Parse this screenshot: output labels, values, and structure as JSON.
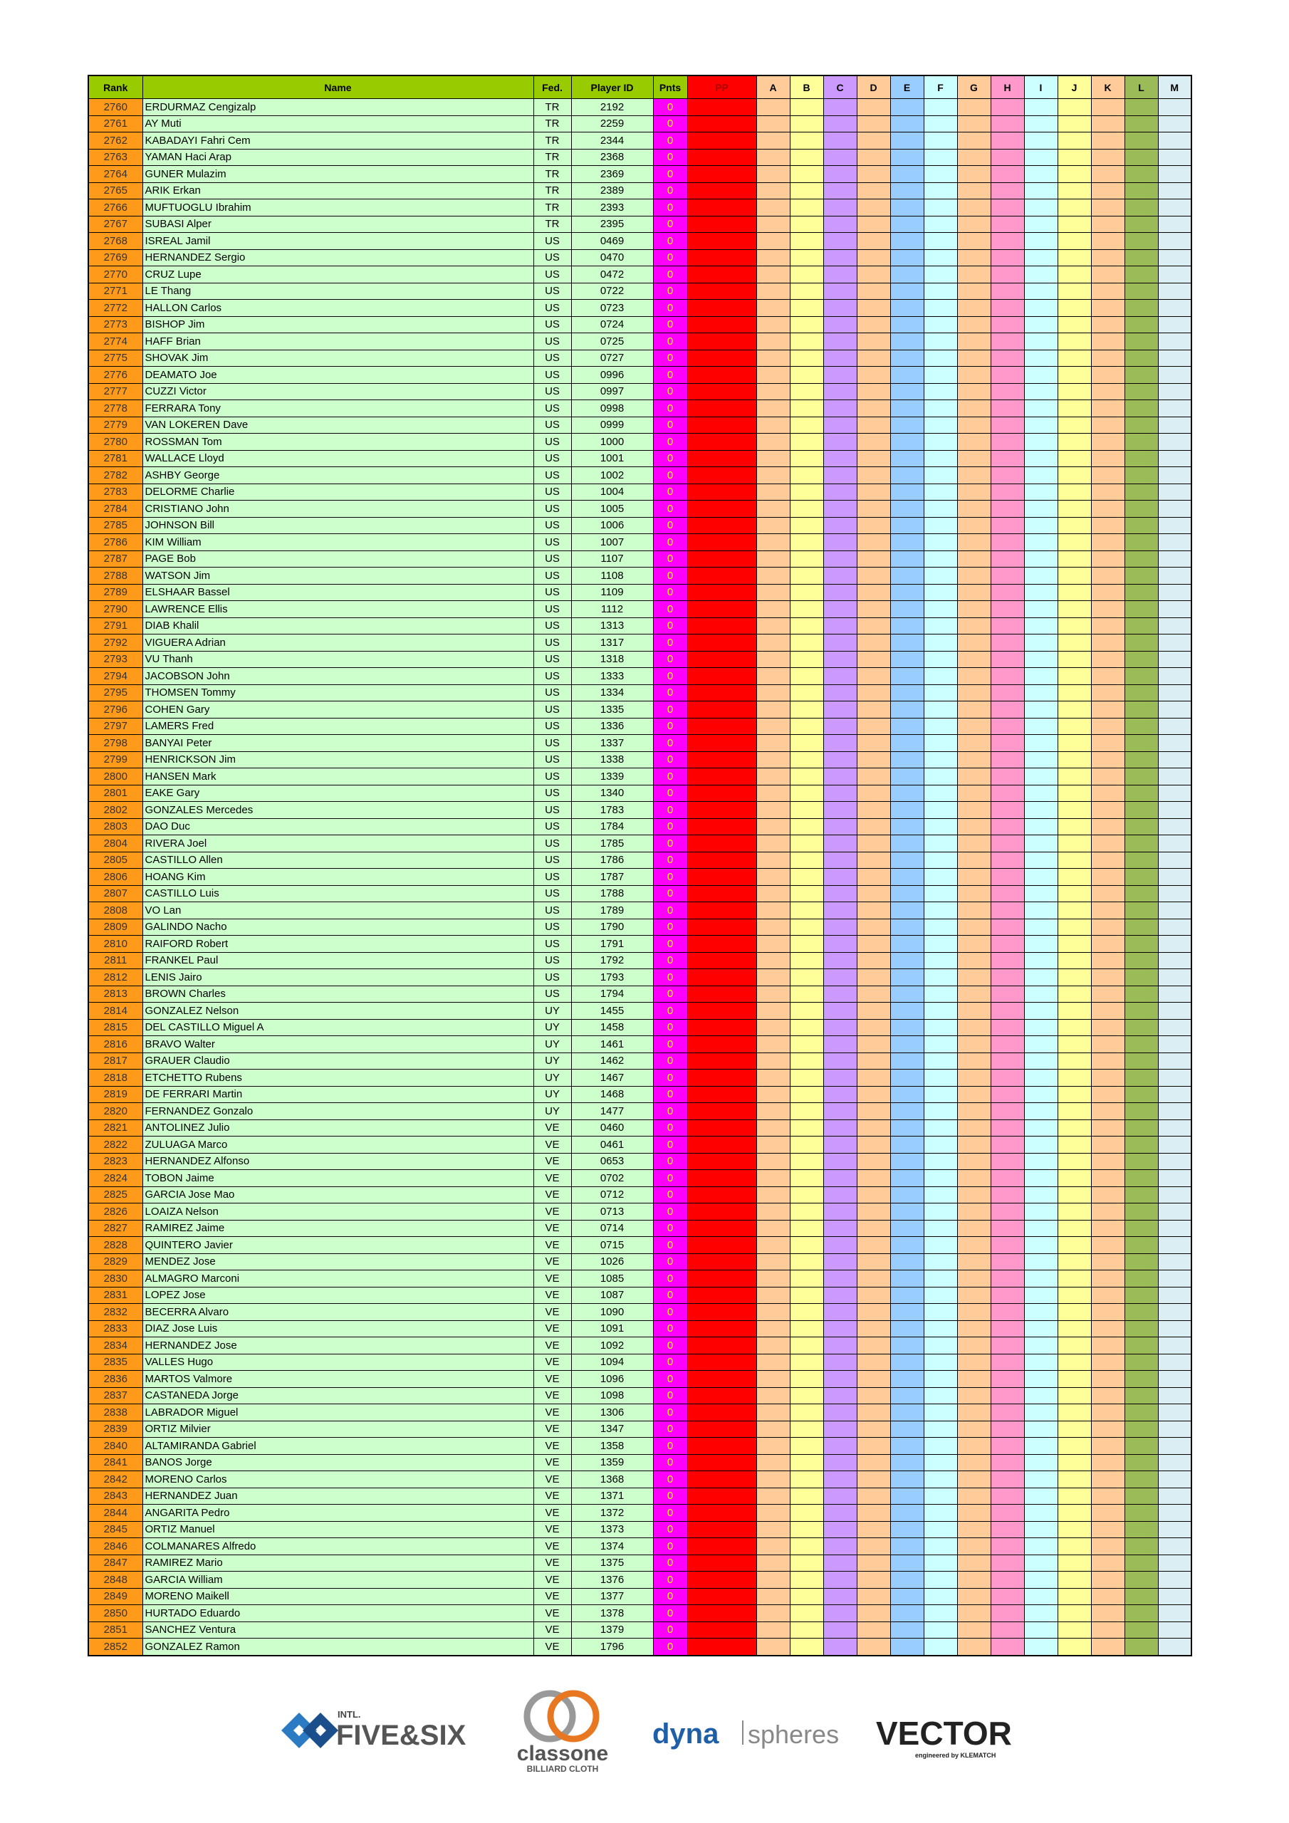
{
  "table": {
    "columns": [
      "Rank",
      "Name",
      "Fed.",
      "Player ID",
      "Pnts",
      "PP",
      "A",
      "B",
      "C",
      "D",
      "E",
      "F",
      "G",
      "H",
      "I",
      "J",
      "K",
      "L",
      "M"
    ],
    "rows": [
      [
        2760,
        "ERDURMAZ Cengizalp",
        "TR",
        "2192",
        0
      ],
      [
        2761,
        "AY Muti",
        "TR",
        "2259",
        0
      ],
      [
        2762,
        "KABADAYI Fahri Cem",
        "TR",
        "2344",
        0
      ],
      [
        2763,
        "YAMAN Haci Arap",
        "TR",
        "2368",
        0
      ],
      [
        2764,
        "GUNER Mulazim",
        "TR",
        "2369",
        0
      ],
      [
        2765,
        "ARIK Erkan",
        "TR",
        "2389",
        0
      ],
      [
        2766,
        "MUFTUOGLU Ibrahim",
        "TR",
        "2393",
        0
      ],
      [
        2767,
        "SUBASI Alper",
        "TR",
        "2395",
        0
      ],
      [
        2768,
        "ISREAL Jamil",
        "US",
        "0469",
        0
      ],
      [
        2769,
        "HERNANDEZ Sergio",
        "US",
        "0470",
        0
      ],
      [
        2770,
        "CRUZ Lupe",
        "US",
        "0472",
        0
      ],
      [
        2771,
        "LE Thang",
        "US",
        "0722",
        0
      ],
      [
        2772,
        "HALLON Carlos",
        "US",
        "0723",
        0
      ],
      [
        2773,
        "BISHOP Jim",
        "US",
        "0724",
        0
      ],
      [
        2774,
        "HAFF Brian",
        "US",
        "0725",
        0
      ],
      [
        2775,
        "SHOVAK Jim",
        "US",
        "0727",
        0
      ],
      [
        2776,
        "DEAMATO Joe",
        "US",
        "0996",
        0
      ],
      [
        2777,
        "CUZZI Victor",
        "US",
        "0997",
        0
      ],
      [
        2778,
        "FERRARA Tony",
        "US",
        "0998",
        0
      ],
      [
        2779,
        "VAN LOKEREN Dave",
        "US",
        "0999",
        0
      ],
      [
        2780,
        "ROSSMAN Tom",
        "US",
        "1000",
        0
      ],
      [
        2781,
        "WALLACE Lloyd",
        "US",
        "1001",
        0
      ],
      [
        2782,
        "ASHBY George",
        "US",
        "1002",
        0
      ],
      [
        2783,
        "DELORME Charlie",
        "US",
        "1004",
        0
      ],
      [
        2784,
        "CRISTIANO John",
        "US",
        "1005",
        0
      ],
      [
        2785,
        "JOHNSON Bill",
        "US",
        "1006",
        0
      ],
      [
        2786,
        "KIM William",
        "US",
        "1007",
        0
      ],
      [
        2787,
        "PAGE Bob",
        "US",
        "1107",
        0
      ],
      [
        2788,
        "WATSON Jim",
        "US",
        "1108",
        0
      ],
      [
        2789,
        "ELSHAAR Bassel",
        "US",
        "1109",
        0
      ],
      [
        2790,
        "LAWRENCE Ellis",
        "US",
        "1112",
        0
      ],
      [
        2791,
        "DIAB Khalil",
        "US",
        "1313",
        0
      ],
      [
        2792,
        "VIGUERA Adrian",
        "US",
        "1317",
        0
      ],
      [
        2793,
        "VU Thanh",
        "US",
        "1318",
        0
      ],
      [
        2794,
        "JACOBSON John",
        "US",
        "1333",
        0
      ],
      [
        2795,
        "THOMSEN Tommy",
        "US",
        "1334",
        0
      ],
      [
        2796,
        "COHEN Gary",
        "US",
        "1335",
        0
      ],
      [
        2797,
        "LAMERS Fred",
        "US",
        "1336",
        0
      ],
      [
        2798,
        "BANYAI Peter",
        "US",
        "1337",
        0
      ],
      [
        2799,
        "HENRICKSON Jim",
        "US",
        "1338",
        0
      ],
      [
        2800,
        "HANSEN Mark",
        "US",
        "1339",
        0
      ],
      [
        2801,
        "EAKE Gary",
        "US",
        "1340",
        0
      ],
      [
        2802,
        "GONZALES Mercedes",
        "US",
        "1783",
        0
      ],
      [
        2803,
        "DAO Duc",
        "US",
        "1784",
        0
      ],
      [
        2804,
        "RIVERA Joel",
        "US",
        "1785",
        0
      ],
      [
        2805,
        "CASTILLO Allen",
        "US",
        "1786",
        0
      ],
      [
        2806,
        "HOANG Kim",
        "US",
        "1787",
        0
      ],
      [
        2807,
        "CASTILLO Luis",
        "US",
        "1788",
        0
      ],
      [
        2808,
        "VO Lan",
        "US",
        "1789",
        0
      ],
      [
        2809,
        "GALINDO Nacho",
        "US",
        "1790",
        0
      ],
      [
        2810,
        "RAIFORD Robert",
        "US",
        "1791",
        0
      ],
      [
        2811,
        "FRANKEL Paul",
        "US",
        "1792",
        0
      ],
      [
        2812,
        "LENIS Jairo",
        "US",
        "1793",
        0
      ],
      [
        2813,
        "BROWN Charles",
        "US",
        "1794",
        0
      ],
      [
        2814,
        "GONZALEZ Nelson",
        "UY",
        "1455",
        0
      ],
      [
        2815,
        "DEL CASTILLO Miguel A",
        "UY",
        "1458",
        0
      ],
      [
        2816,
        "BRAVO Walter",
        "UY",
        "1461",
        0
      ],
      [
        2817,
        "GRAUER Claudio",
        "UY",
        "1462",
        0
      ],
      [
        2818,
        "ETCHETTO Rubens",
        "UY",
        "1467",
        0
      ],
      [
        2819,
        "DE FERRARI Martin",
        "UY",
        "1468",
        0
      ],
      [
        2820,
        "FERNANDEZ Gonzalo",
        "UY",
        "1477",
        0
      ],
      [
        2821,
        "ANTOLINEZ Julio",
        "VE",
        "0460",
        0
      ],
      [
        2822,
        "ZULUAGA Marco",
        "VE",
        "0461",
        0
      ],
      [
        2823,
        "HERNANDEZ Alfonso",
        "VE",
        "0653",
        0
      ],
      [
        2824,
        "TOBON Jaime",
        "VE",
        "0702",
        0
      ],
      [
        2825,
        "GARCIA Jose Mao",
        "VE",
        "0712",
        0
      ],
      [
        2826,
        "LOAIZA Nelson",
        "VE",
        "0713",
        0
      ],
      [
        2827,
        "RAMIREZ Jaime",
        "VE",
        "0714",
        0
      ],
      [
        2828,
        "QUINTERO Javier",
        "VE",
        "0715",
        0
      ],
      [
        2829,
        "MENDEZ Jose",
        "VE",
        "1026",
        0
      ],
      [
        2830,
        "ALMAGRO Marconi",
        "VE",
        "1085",
        0
      ],
      [
        2831,
        "LOPEZ Jose",
        "VE",
        "1087",
        0
      ],
      [
        2832,
        "BECERRA Alvaro",
        "VE",
        "1090",
        0
      ],
      [
        2833,
        "DIAZ Jose Luis",
        "VE",
        "1091",
        0
      ],
      [
        2834,
        "HERNANDEZ Jose",
        "VE",
        "1092",
        0
      ],
      [
        2835,
        "VALLES Hugo",
        "VE",
        "1094",
        0
      ],
      [
        2836,
        "MARTOS Valmore",
        "VE",
        "1096",
        0
      ],
      [
        2837,
        "CASTANEDA Jorge",
        "VE",
        "1098",
        0
      ],
      [
        2838,
        "LABRADOR Miguel",
        "VE",
        "1306",
        0
      ],
      [
        2839,
        "ORTIZ Milvier",
        "VE",
        "1347",
        0
      ],
      [
        2840,
        "ALTAMIRANDA Gabriel",
        "VE",
        "1358",
        0
      ],
      [
        2841,
        "BANOS Jorge",
        "VE",
        "1359",
        0
      ],
      [
        2842,
        "MORENO Carlos",
        "VE",
        "1368",
        0
      ],
      [
        2843,
        "HERNANDEZ Juan",
        "VE",
        "1371",
        0
      ],
      [
        2844,
        "ANGARITA Pedro",
        "VE",
        "1372",
        0
      ],
      [
        2845,
        "ORTIZ Manuel",
        "VE",
        "1373",
        0
      ],
      [
        2846,
        "COLMANARES Alfredo",
        "VE",
        "1374",
        0
      ],
      [
        2847,
        "RAMIREZ Mario",
        "VE",
        "1375",
        0
      ],
      [
        2848,
        "GARCIA William",
        "VE",
        "1376",
        0
      ],
      [
        2849,
        "MORENO Maikell",
        "VE",
        "1377",
        0
      ],
      [
        2850,
        "HURTADO Eduardo",
        "VE",
        "1378",
        0
      ],
      [
        2851,
        "SANCHEZ Ventura",
        "VE",
        "1379",
        0
      ],
      [
        2852,
        "GONZALEZ Ramon",
        "VE",
        "1796",
        0
      ]
    ]
  },
  "footer": {
    "five_six": {
      "intl": "INTL.",
      "name": "FIVE&SIX"
    },
    "classone": {
      "name": "classone",
      "sub": "BILLIARD CLOTH"
    },
    "dynaspheres": {
      "dyna": "dyna",
      "spheres": "spheres"
    },
    "vector": {
      "name": "VECTOR",
      "sub": "engineered by KLEMATCH"
    }
  }
}
